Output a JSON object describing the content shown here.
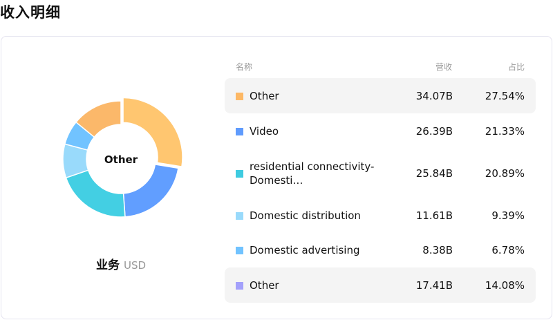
{
  "title": "收入明细",
  "center_label": "Other",
  "business": {
    "label": "业务",
    "currency": "USD"
  },
  "headers": {
    "name": "名称",
    "revenue": "营收",
    "share": "占比"
  },
  "rows": [
    {
      "name": "Other",
      "revenue": "34.07B",
      "share": "27.54%",
      "pct": 27.54,
      "swatch": "#FDB865",
      "slice": "#FFC670",
      "highlight": true
    },
    {
      "name": "Video",
      "revenue": "26.39B",
      "share": "21.33%",
      "pct": 21.33,
      "swatch": "#5F9BFD",
      "slice": "#619EFF",
      "highlight": false
    },
    {
      "name": "residential connectivity-Domesti…",
      "revenue": "25.84B",
      "share": "20.89%",
      "pct": 20.89,
      "swatch": "#3ECBE0",
      "slice": "#43CFE3",
      "highlight": false
    },
    {
      "name": "Domestic distribution",
      "revenue": "11.61B",
      "share": "9.39%",
      "pct": 9.39,
      "swatch": "#99DAFB",
      "slice": "#99DAFB",
      "highlight": false
    },
    {
      "name": "Domestic advertising",
      "revenue": "8.38B",
      "share": "6.78%",
      "pct": 6.78,
      "swatch": "#71C3FF",
      "slice": "#71C3FF",
      "highlight": false
    },
    {
      "name": "Other",
      "revenue": "17.41B",
      "share": "14.08%",
      "pct": 14.08,
      "swatch": "#A3A0FB",
      "slice": "#FBB86A",
      "highlight": true
    }
  ]
}
